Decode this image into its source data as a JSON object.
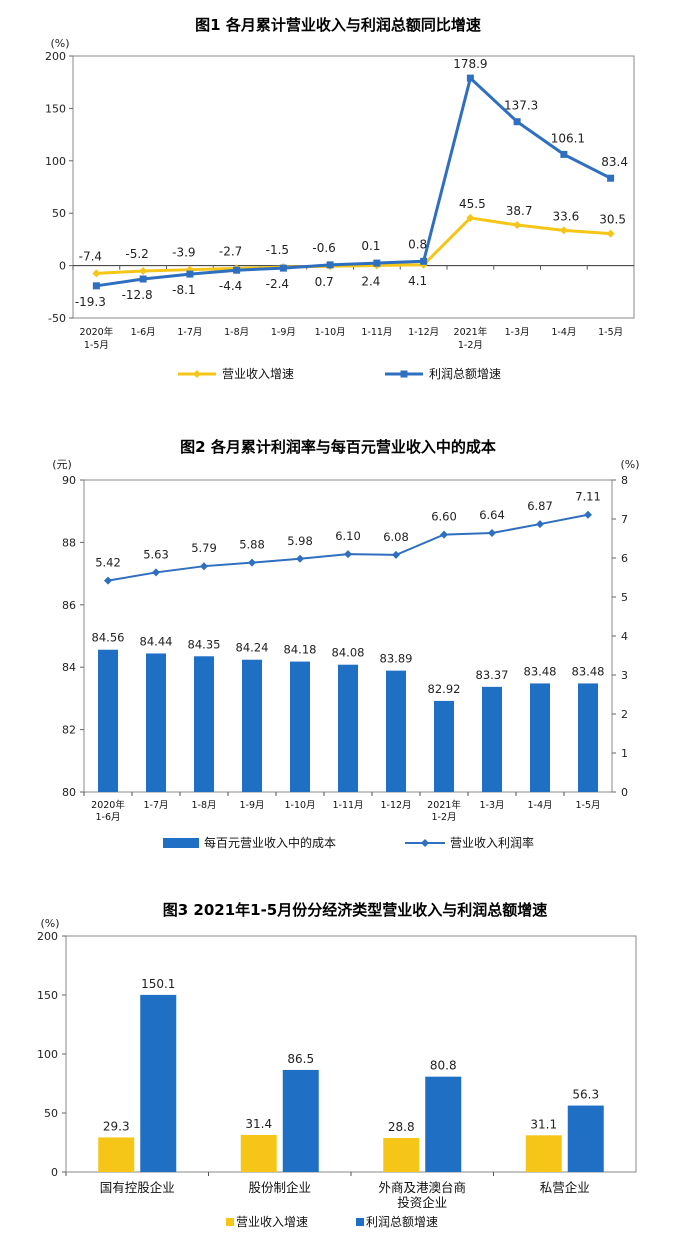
{
  "chart_data": [
    {
      "type": "line",
      "title": "图1  各月累计营业收入与利润总额同比增速",
      "unit": "(%)",
      "ylim": [
        -50,
        200
      ],
      "yticks": [
        "-50",
        "0",
        "50",
        "100",
        "150",
        "200"
      ],
      "categories": [
        [
          "2020年",
          "1-5月"
        ],
        [
          "1-6月"
        ],
        [
          "1-7月"
        ],
        [
          "1-8月"
        ],
        [
          "1-9月"
        ],
        [
          "1-10月"
        ],
        [
          "1-11月"
        ],
        [
          "1-12月"
        ],
        [
          "2021年",
          "1-2月"
        ],
        [
          "1-3月"
        ],
        [
          "1-4月"
        ],
        [
          "1-5月"
        ]
      ],
      "series": [
        {
          "name": "营业收入增速",
          "color": "#F5C518",
          "values": [
            -7.4,
            -5.2,
            -3.9,
            -2.7,
            -1.5,
            -0.6,
            0.1,
            0.8,
            45.5,
            38.7,
            33.6,
            30.5
          ],
          "labels": [
            "-7.4",
            "-5.2",
            "-3.9",
            "-2.7",
            "-1.5",
            "-0.6",
            "0.1",
            "0.8",
            "45.5",
            "38.7",
            "33.6",
            "30.5"
          ]
        },
        {
          "name": "利润总额增速",
          "color": "#2E6FC0",
          "values": [
            -19.3,
            -12.8,
            -8.1,
            -4.4,
            -2.4,
            0.7,
            2.4,
            4.1,
            178.9,
            137.3,
            106.1,
            83.4
          ],
          "labels": [
            "-19.3",
            "-12.8",
            "-8.1",
            "-4.4",
            "-2.4",
            "0.7",
            "2.4",
            "4.1",
            "178.9",
            "137.3",
            "106.1",
            "83.4"
          ]
        }
      ],
      "legend_position": "bottom"
    },
    {
      "type": "bar+line",
      "title": "图2  各月累计利润率与每百元营业收入中的成本",
      "unit_left": "(元)",
      "unit_right": "(%)",
      "ylim_left": [
        80,
        90
      ],
      "yticks_left": [
        "80",
        "82",
        "84",
        "86",
        "88",
        "90"
      ],
      "ylim_right": [
        0,
        8
      ],
      "yticks_right": [
        "0",
        "1",
        "2",
        "3",
        "4",
        "5",
        "6",
        "7",
        "8"
      ],
      "categories": [
        [
          "2020年",
          "1-6月"
        ],
        [
          "1-7月"
        ],
        [
          "1-8月"
        ],
        [
          "1-9月"
        ],
        [
          "1-10月"
        ],
        [
          "1-11月"
        ],
        [
          "1-12月"
        ],
        [
          "2021年",
          "1-2月"
        ],
        [
          "1-3月"
        ],
        [
          "1-4月"
        ],
        [
          "1-5月"
        ]
      ],
      "series": [
        {
          "name": "每百元营业收入中的成本",
          "kind": "bar",
          "axis": "left",
          "color": "#1F6FC5",
          "values": [
            84.56,
            84.44,
            84.35,
            84.24,
            84.18,
            84.08,
            83.89,
            82.92,
            83.37,
            83.48,
            83.48
          ],
          "labels": [
            "84.56",
            "84.44",
            "84.35",
            "84.24",
            "84.18",
            "84.08",
            "83.89",
            "82.92",
            "83.37",
            "83.48",
            "83.48"
          ]
        },
        {
          "name": "营业收入利润率",
          "kind": "line",
          "axis": "right",
          "color": "#2E6FC0",
          "values": [
            5.42,
            5.63,
            5.79,
            5.88,
            5.98,
            6.1,
            6.08,
            6.6,
            6.64,
            6.87,
            7.11
          ],
          "labels": [
            "5.42",
            "5.63",
            "5.79",
            "5.88",
            "5.98",
            "6.10",
            "6.08",
            "6.60",
            "6.64",
            "6.87",
            "7.11"
          ]
        }
      ],
      "legend_position": "bottom"
    },
    {
      "type": "bar",
      "title": "图3  2021年1-5月份分经济类型营业收入与利润总额增速",
      "unit": "(%)",
      "ylim": [
        0,
        200
      ],
      "yticks": [
        "0",
        "50",
        "100",
        "150",
        "200"
      ],
      "categories": [
        [
          "国有控股企业"
        ],
        [
          "股份制企业"
        ],
        [
          "外商及港澳台商",
          "投资企业"
        ],
        [
          "私营企业"
        ]
      ],
      "series": [
        {
          "name": "营业收入增速",
          "color": "#F5C518",
          "values": [
            29.3,
            31.4,
            28.8,
            31.1
          ],
          "labels": [
            "29.3",
            "31.4",
            "28.8",
            "31.1"
          ]
        },
        {
          "name": "利润总额增速",
          "color": "#1F6FC5",
          "values": [
            150.1,
            86.5,
            80.8,
            56.3
          ],
          "labels": [
            "150.1",
            "86.5",
            "80.8",
            "56.3"
          ]
        }
      ],
      "legend_position": "bottom"
    }
  ]
}
